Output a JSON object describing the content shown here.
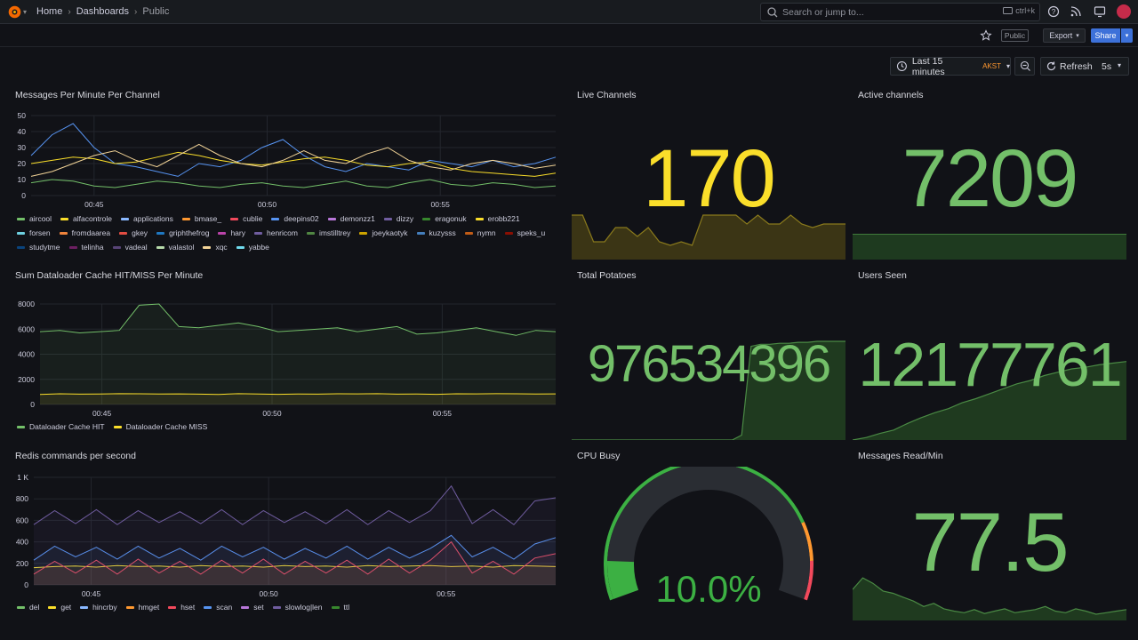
{
  "topbar": {
    "breadcrumb": [
      "Home",
      "Dashboards",
      "Public"
    ],
    "search_placeholder": "Search or jump to...",
    "search_shortcut": "ctrl+k",
    "icons": [
      "grafana-logo-icon",
      "help-icon",
      "news-icon",
      "kiosk-icon",
      "avatar"
    ]
  },
  "subbar": {
    "public_tag": "Public",
    "export_label": "Export",
    "share_label": "Share"
  },
  "controls": {
    "time_range": "Last 15 minutes",
    "timezone": "AKST",
    "refresh_label": "Refresh",
    "refresh_interval": "5s"
  },
  "colors": {
    "green": "#73bf69",
    "yellow": "#fade2a",
    "blue": "#5794f2",
    "orange": "#ff9830",
    "red": "#f2495c",
    "purple": "#b877d9",
    "background": "#111217"
  },
  "panels": {
    "messages_per_minute": {
      "title": "Messages Per Minute Per Channel",
      "legend": [
        {
          "name": "aircool",
          "color": "#73bf69"
        },
        {
          "name": "alfacontrole",
          "color": "#fade2a"
        },
        {
          "name": "applications",
          "color": "#8ab8ff"
        },
        {
          "name": "bmase_",
          "color": "#ff9830"
        },
        {
          "name": "cublie",
          "color": "#f2495c"
        },
        {
          "name": "deepins02",
          "color": "#5794f2"
        },
        {
          "name": "demonzz1",
          "color": "#b877d9"
        },
        {
          "name": "dizzy",
          "color": "#705da0"
        },
        {
          "name": "eragonuk",
          "color": "#37872d"
        },
        {
          "name": "erobb221",
          "color": "#fade2a"
        },
        {
          "name": "forsen",
          "color": "#6ed0e0"
        },
        {
          "name": "fromdaarea",
          "color": "#ef843c"
        },
        {
          "name": "gkey",
          "color": "#e24d42"
        },
        {
          "name": "griphthefrog",
          "color": "#1f78c1"
        },
        {
          "name": "hary",
          "color": "#ba43a9"
        },
        {
          "name": "henricom",
          "color": "#705da0"
        },
        {
          "name": "imstilltrey",
          "color": "#508642"
        },
        {
          "name": "joeykaotyk",
          "color": "#cca300"
        },
        {
          "name": "kuzysss",
          "color": "#447ebc"
        },
        {
          "name": "nymn",
          "color": "#c15c17"
        },
        {
          "name": "speks_u",
          "color": "#890f02"
        },
        {
          "name": "studytme",
          "color": "#0a437c"
        },
        {
          "name": "telinha",
          "color": "#6d1f62"
        },
        {
          "name": "vadeal",
          "color": "#584477"
        },
        {
          "name": "valastol",
          "color": "#b7dbab"
        },
        {
          "name": "xqc",
          "color": "#f4d598"
        },
        {
          "name": "yabbe",
          "color": "#70dbed"
        }
      ]
    },
    "cache": {
      "title": "Sum Dataloader Cache HIT/MISS Per Minute",
      "legend": [
        {
          "name": "Dataloader Cache HIT",
          "color": "#73bf69"
        },
        {
          "name": "Dataloader Cache MISS",
          "color": "#fade2a"
        }
      ]
    },
    "redis": {
      "title": "Redis commands per second",
      "legend": [
        {
          "name": "del",
          "color": "#73bf69"
        },
        {
          "name": "get",
          "color": "#fade2a"
        },
        {
          "name": "hincrby",
          "color": "#8ab8ff"
        },
        {
          "name": "hmget",
          "color": "#ff9830"
        },
        {
          "name": "hset",
          "color": "#f2495c"
        },
        {
          "name": "scan",
          "color": "#5794f2"
        },
        {
          "name": "set",
          "color": "#b877d9"
        },
        {
          "name": "slowlog|len",
          "color": "#705da0"
        },
        {
          "name": "ttl",
          "color": "#37872d"
        }
      ]
    },
    "live_channels": {
      "title": "Live Channels",
      "value": "170"
    },
    "active_channels": {
      "title": "Active channels",
      "value": "7209"
    },
    "total_potatoes": {
      "title": "Total Potatoes",
      "value": "976534396"
    },
    "users_seen": {
      "title": "Users Seen",
      "value": "12177761"
    },
    "cpu_busy": {
      "title": "CPU Busy",
      "value": "10.0%",
      "percent": 10
    },
    "messages_read": {
      "title": "Messages Read/Min",
      "value": "77.5"
    }
  },
  "chart_data": [
    {
      "type": "line",
      "title": "Messages Per Minute Per Channel",
      "x_ticks": [
        "00:45",
        "00:50",
        "00:55"
      ],
      "y_ticks": [
        0,
        10,
        20,
        30,
        40,
        50
      ],
      "ylim": [
        0,
        50
      ],
      "series": [
        {
          "name": "deepins02",
          "values": [
            25,
            38,
            45,
            30,
            20,
            18,
            15,
            12,
            20,
            18,
            22,
            30,
            35,
            25,
            18,
            15,
            20,
            18,
            16,
            22,
            20,
            18,
            22,
            18,
            20,
            24
          ]
        },
        {
          "name": "erobb221",
          "values": [
            20,
            22,
            24,
            23,
            20,
            21,
            24,
            27,
            25,
            22,
            20,
            19,
            21,
            23,
            24,
            22,
            19,
            18,
            20,
            21,
            17,
            15,
            14,
            13,
            12,
            14
          ]
        },
        {
          "name": "xqc",
          "values": [
            12,
            15,
            20,
            25,
            28,
            22,
            18,
            25,
            32,
            25,
            20,
            18,
            22,
            28,
            22,
            20,
            26,
            30,
            22,
            18,
            16,
            20,
            22,
            20,
            17,
            19
          ]
        },
        {
          "name": "aircool",
          "values": [
            8,
            10,
            9,
            6,
            5,
            7,
            9,
            8,
            6,
            5,
            7,
            8,
            6,
            5,
            7,
            9,
            6,
            5,
            8,
            10,
            7,
            6,
            8,
            7,
            5,
            6
          ]
        }
      ]
    },
    {
      "type": "area",
      "title": "Sum Dataloader Cache HIT/MISS Per Minute",
      "x_ticks": [
        "00:45",
        "00:50",
        "00:55"
      ],
      "y_ticks": [
        0,
        2000,
        4000,
        6000,
        8000
      ],
      "ylim": [
        0,
        8000
      ],
      "series": [
        {
          "name": "Dataloader Cache HIT",
          "values": [
            5800,
            5900,
            5700,
            5800,
            5900,
            7900,
            8000,
            6200,
            6100,
            6300,
            6500,
            6200,
            5800,
            5900,
            6000,
            6100,
            5800,
            6000,
            6200,
            5600,
            5700,
            5900,
            6100,
            5800,
            5500,
            5900,
            5800
          ]
        },
        {
          "name": "Dataloader Cache MISS",
          "values": [
            800,
            850,
            820,
            830,
            860,
            850,
            830,
            840,
            820,
            800,
            860,
            830,
            810,
            830,
            820,
            850,
            840,
            860,
            820,
            830,
            810,
            850,
            840,
            860,
            850,
            830,
            840
          ]
        }
      ]
    },
    {
      "type": "area",
      "title": "Redis commands per second",
      "x_ticks": [
        "00:45",
        "00:50",
        "00:55"
      ],
      "y_ticks": [
        "0",
        "200",
        "400",
        "600",
        "800",
        "1 K"
      ],
      "ylim": [
        0,
        1000
      ],
      "series": [
        {
          "name": "get",
          "values": [
            160,
            170,
            175,
            165,
            180,
            170,
            175,
            165,
            180,
            170,
            175,
            165,
            180,
            170,
            175,
            165,
            180,
            170,
            175,
            180,
            170,
            175,
            165,
            180,
            175,
            170
          ]
        },
        {
          "name": "hset",
          "values": [
            100,
            220,
            110,
            230,
            100,
            240,
            110,
            220,
            100,
            230,
            110,
            240,
            100,
            220,
            110,
            230,
            100,
            240,
            110,
            230,
            400,
            110,
            220,
            100,
            250,
            290
          ]
        },
        {
          "name": "scan",
          "values": [
            230,
            360,
            260,
            350,
            240,
            360,
            250,
            340,
            230,
            360,
            260,
            350,
            240,
            340,
            250,
            360,
            240,
            350,
            250,
            340,
            460,
            260,
            350,
            240,
            380,
            440
          ]
        },
        {
          "name": "slowlog|len",
          "values": [
            560,
            690,
            570,
            700,
            560,
            690,
            580,
            680,
            570,
            700,
            560,
            690,
            580,
            680,
            570,
            700,
            560,
            690,
            580,
            690,
            920,
            570,
            700,
            560,
            780,
            810
          ]
        }
      ]
    },
    {
      "type": "area",
      "title": "Live Channels",
      "series": [
        {
          "name": "Live Channels",
          "values": [
            175,
            175,
            160,
            160,
            168,
            168,
            163,
            168,
            160,
            158,
            160,
            158,
            175,
            175,
            175,
            175,
            170,
            175,
            170,
            170,
            175,
            170,
            168,
            170,
            170,
            170
          ]
        }
      ],
      "ylim": [
        150,
        180
      ]
    },
    {
      "type": "area",
      "title": "Total Potatoes",
      "series": [
        {
          "name": "Total Potatoes",
          "values": [
            0,
            0,
            0,
            0,
            0,
            0,
            0,
            0,
            0,
            0,
            0,
            0,
            0,
            0,
            0,
            0,
            0,
            0,
            5,
            95,
            97,
            97,
            98,
            98,
            99,
            99,
            100,
            100,
            100,
            100
          ]
        }
      ],
      "ylim": [
        0,
        100
      ]
    },
    {
      "type": "area",
      "title": "Users Seen",
      "series": [
        {
          "name": "Users Seen",
          "values": [
            0,
            3,
            8,
            12,
            20,
            27,
            33,
            38,
            45,
            50,
            56,
            62,
            68,
            72,
            78,
            82,
            86,
            88,
            91,
            93,
            95
          ]
        }
      ],
      "ylim": [
        0,
        100
      ]
    },
    {
      "type": "area",
      "title": "Messages Read/Min",
      "series": [
        {
          "name": "Messages Read/Min",
          "values": [
            40,
            55,
            48,
            38,
            35,
            30,
            25,
            18,
            22,
            15,
            12,
            10,
            14,
            9,
            12,
            15,
            10,
            12,
            14,
            18,
            12,
            10,
            15,
            12,
            8,
            10,
            12,
            14
          ]
        }
      ],
      "ylim": [
        0,
        70
      ]
    }
  ]
}
